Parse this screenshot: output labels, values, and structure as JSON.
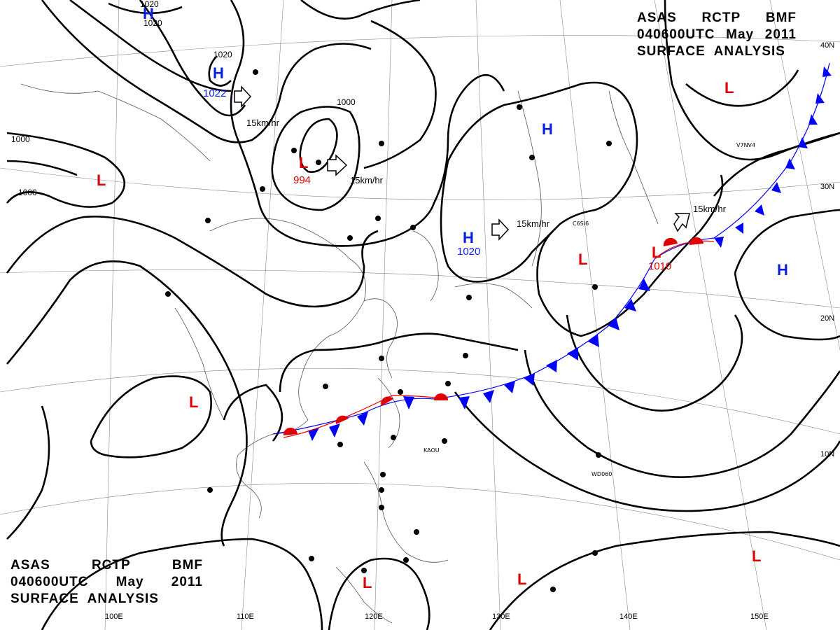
{
  "title_top_right": {
    "row1": [
      "ASAS",
      "RCTP",
      "BMF"
    ],
    "row2": [
      "040600UTC",
      "May",
      "2011"
    ],
    "row3": "SURFACE  ANALYSIS"
  },
  "title_bottom_left": {
    "row1": [
      "ASAS",
      "RCTP",
      "BMF"
    ],
    "row2": [
      "040600UTC",
      "May",
      "2011"
    ],
    "row3": "SURFACE  ANALYSIS"
  },
  "longitude_labels": [
    "100E",
    "110E",
    "120E",
    "130E",
    "140E",
    "150E"
  ],
  "latitude_labels": [
    "40N",
    "30N",
    "20N",
    "10N"
  ],
  "pressure_centers": [
    {
      "type": "H",
      "color": "blue",
      "value": "1020"
    },
    {
      "type": "H",
      "color": "blue",
      "value": "1022"
    },
    {
      "type": "L",
      "color": "red",
      "value": "994"
    },
    {
      "type": "L",
      "color": "red",
      "value": ""
    },
    {
      "type": "H",
      "color": "blue",
      "value": "1020"
    },
    {
      "type": "H",
      "color": "blue",
      "value": ""
    },
    {
      "type": "L",
      "color": "red",
      "value": ""
    },
    {
      "type": "L",
      "color": "red",
      "value": "1010"
    },
    {
      "type": "L",
      "color": "red",
      "value": ""
    },
    {
      "type": "H",
      "color": "blue",
      "value": ""
    },
    {
      "type": "L",
      "color": "red",
      "value": ""
    },
    {
      "type": "L",
      "color": "red",
      "value": ""
    },
    {
      "type": "L",
      "color": "red",
      "value": ""
    },
    {
      "type": "L",
      "color": "red",
      "value": ""
    }
  ],
  "isobar_labels": [
    "1000",
    "1000",
    "1000",
    "1020",
    "1020"
  ],
  "motion_labels": [
    "15km/hr",
    "15km/hr",
    "15km/hr",
    "15km/hr"
  ],
  "ship_labels": [
    "C6SI6",
    "V7NV4",
    "WD060",
    "KAOU"
  ],
  "colors": {
    "high": "#0a1ee0",
    "low": "#e00000",
    "cold_front": "#0000ff",
    "warm_front": "#e00000",
    "isobar": "#000000"
  }
}
